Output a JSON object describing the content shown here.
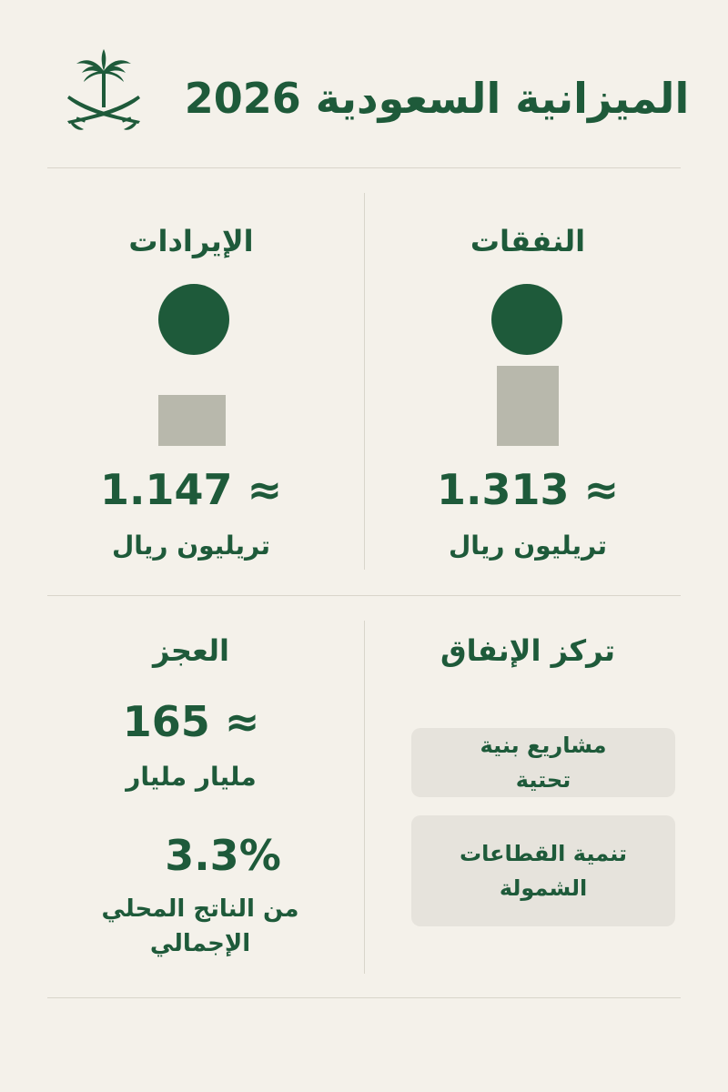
{
  "header": {
    "title": "الميزانية السعودية 2026"
  },
  "revenues": {
    "title": "الإيرادات",
    "value": "1.147 ≈",
    "unit": "تريليون ريال",
    "amount_trillion": 1.147
  },
  "expenses": {
    "title": "النفقات",
    "value": "1.313 ≈",
    "unit": "تريليون ريال",
    "amount_trillion": 1.313
  },
  "deficit": {
    "title": "العجز",
    "value": "165 ≈",
    "unit": "مليار مليار",
    "percent": "3.3%",
    "percent_label": "من الناتج المحلي الإجمالي"
  },
  "spending_focus": {
    "title": "تركز الإنفاق",
    "items": [
      {
        "label": "مشاريع بنية تحتية"
      },
      {
        "label": "تنمية القطاعات الشمولة"
      }
    ]
  },
  "colors": {
    "primary_green": "#1e5a3a",
    "bar_gray": "#b8b8ac",
    "background": "#f4f1ea",
    "card": "#e6e3dc"
  },
  "icons": {
    "emblem": "palm-and-crossed-swords-icon"
  }
}
